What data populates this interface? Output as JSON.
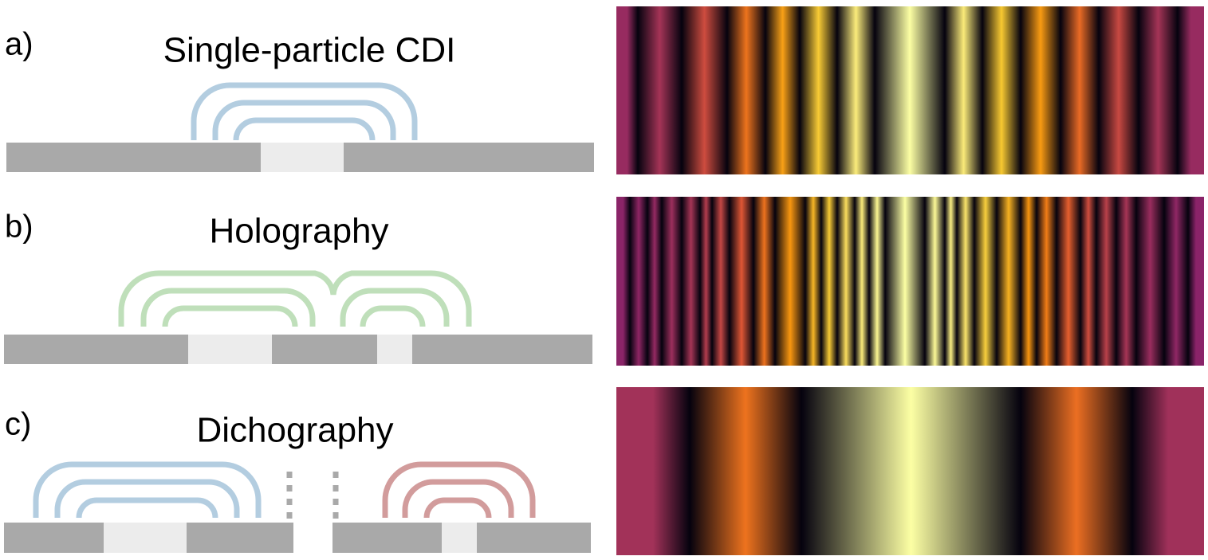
{
  "panels": [
    {
      "label": "a)",
      "title": "Single-particle CDI"
    },
    {
      "label": "b)",
      "title": "Holography"
    },
    {
      "label": "c)",
      "title": "Dichography"
    }
  ]
}
